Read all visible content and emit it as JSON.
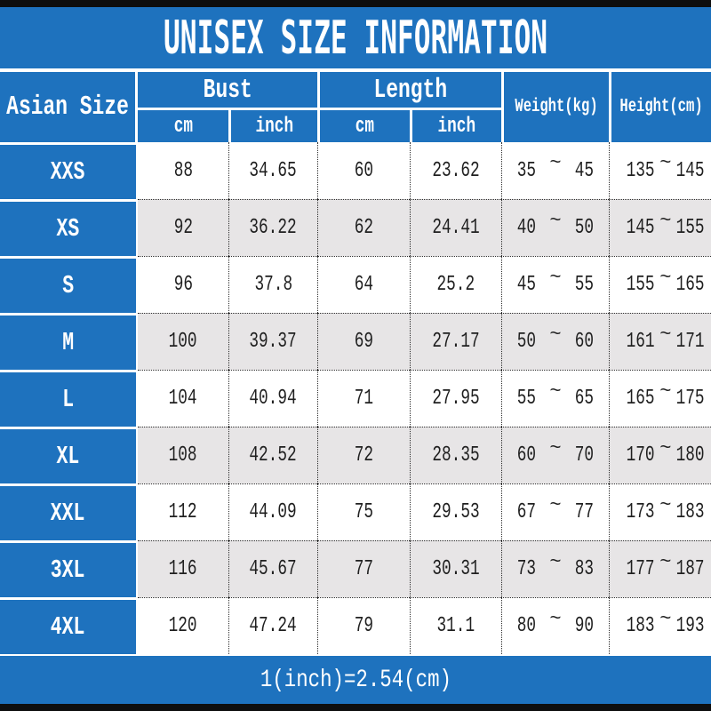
{
  "title": "UNISEX SIZE INFORMATION",
  "colors": {
    "accent_blue": "#1e72be",
    "gray_row": "#e7e5e6",
    "white_row": "#ffffff",
    "border_bar": "#0e0e0e"
  },
  "tilde": "~",
  "header": {
    "size_col": "Asian Size",
    "bust": "Bust",
    "length": "Length",
    "cm": "cm",
    "inch": "inch",
    "weight": "Weight(kg)",
    "height": "Height(cm)"
  },
  "rows": [
    {
      "size": "XXS",
      "bust_cm": "88",
      "bust_inch": "34.65",
      "length_cm": "60",
      "length_inch": "23.62",
      "weight_min": "35",
      "weight_max": "45",
      "height_min": "135",
      "height_max": "145"
    },
    {
      "size": "XS",
      "bust_cm": "92",
      "bust_inch": "36.22",
      "length_cm": "62",
      "length_inch": "24.41",
      "weight_min": "40",
      "weight_max": "50",
      "height_min": "145",
      "height_max": "155"
    },
    {
      "size": "S",
      "bust_cm": "96",
      "bust_inch": "37.8",
      "length_cm": "64",
      "length_inch": "25.2",
      "weight_min": "45",
      "weight_max": "55",
      "height_min": "155",
      "height_max": "165"
    },
    {
      "size": "M",
      "bust_cm": "100",
      "bust_inch": "39.37",
      "length_cm": "69",
      "length_inch": "27.17",
      "weight_min": "50",
      "weight_max": "60",
      "height_min": "161",
      "height_max": "171"
    },
    {
      "size": "L",
      "bust_cm": "104",
      "bust_inch": "40.94",
      "length_cm": "71",
      "length_inch": "27.95",
      "weight_min": "55",
      "weight_max": "65",
      "height_min": "165",
      "height_max": "175"
    },
    {
      "size": "XL",
      "bust_cm": "108",
      "bust_inch": "42.52",
      "length_cm": "72",
      "length_inch": "28.35",
      "weight_min": "60",
      "weight_max": "70",
      "height_min": "170",
      "height_max": "180"
    },
    {
      "size": "XXL",
      "bust_cm": "112",
      "bust_inch": "44.09",
      "length_cm": "75",
      "length_inch": "29.53",
      "weight_min": "67",
      "weight_max": "77",
      "height_min": "173",
      "height_max": "183"
    },
    {
      "size": "3XL",
      "bust_cm": "116",
      "bust_inch": "45.67",
      "length_cm": "77",
      "length_inch": "30.31",
      "weight_min": "73",
      "weight_max": "83",
      "height_min": "177",
      "height_max": "187"
    },
    {
      "size": "4XL",
      "bust_cm": "120",
      "bust_inch": "47.24",
      "length_cm": "79",
      "length_inch": "31.1",
      "weight_min": "80",
      "weight_max": "90",
      "height_min": "183",
      "height_max": "193"
    }
  ],
  "footer": "1(inch)=2.54(cm)"
}
